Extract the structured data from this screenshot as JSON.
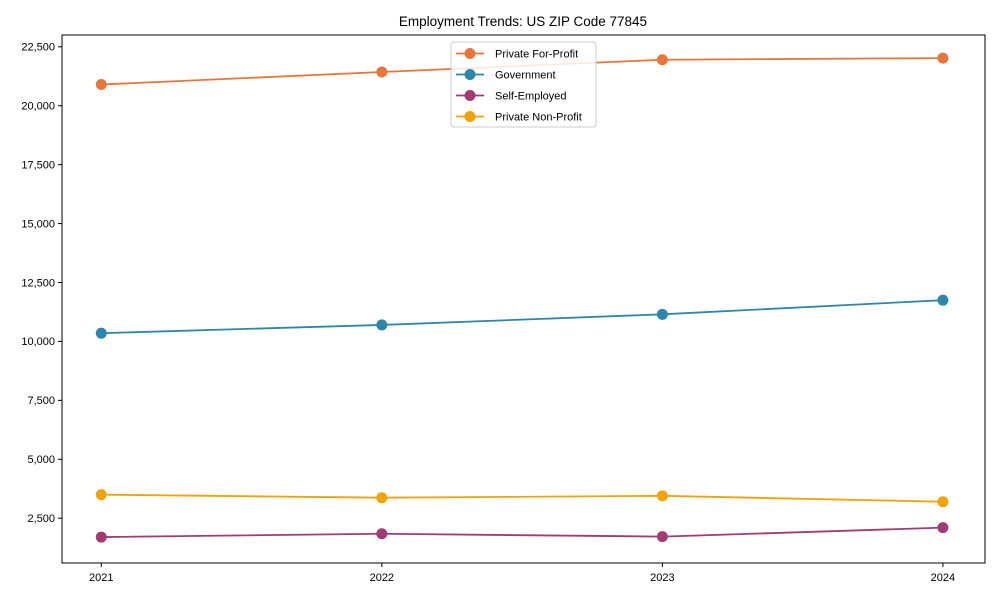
{
  "chart_data": {
    "type": "line",
    "title": "Employment Trends: US ZIP Code 77845",
    "xlabel": "",
    "ylabel": "",
    "grid": false,
    "legend_position": "upper center",
    "x": [
      2021,
      2022,
      2023,
      2024
    ],
    "x_tick_labels": [
      "2021",
      "2022",
      "2023",
      "2024"
    ],
    "y_ticks": [
      2500,
      5000,
      7500,
      10000,
      12500,
      15000,
      17500,
      20000,
      22500
    ],
    "y_tick_labels": [
      "2,500",
      "5,000",
      "7,500",
      "10,000",
      "12,500",
      "15,000",
      "17,500",
      "20,000",
      "22,500"
    ],
    "xlim": [
      2020.86,
      2024.15
    ],
    "ylim": [
      600,
      23000
    ],
    "series": [
      {
        "name": "Private For-Profit",
        "color": "#E8763B",
        "values": [
          20900,
          21430,
          21950,
          22020
        ]
      },
      {
        "name": "Government",
        "color": "#2E86AB",
        "values": [
          10350,
          10700,
          11150,
          11750
        ]
      },
      {
        "name": "Self-Employed",
        "color": "#A23B72",
        "values": [
          1700,
          1840,
          1720,
          2100
        ]
      },
      {
        "name": "Private Non-Profit",
        "color": "#F1A208",
        "values": [
          3500,
          3370,
          3450,
          3200
        ]
      }
    ]
  }
}
